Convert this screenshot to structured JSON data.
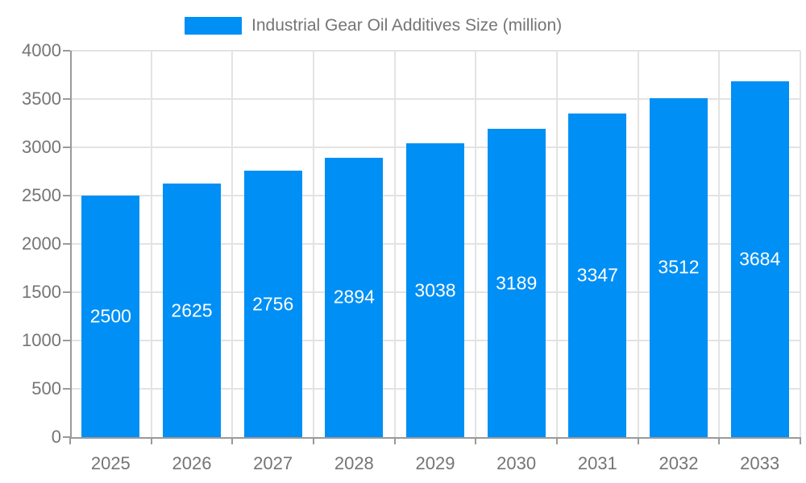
{
  "legend": {
    "label": "Industrial Gear Oil Additives Size (million)"
  },
  "colors": {
    "bar": "#008FF5",
    "axis_text": "#757575",
    "bar_label_text": "#ffffff",
    "grid_line": "#e3e3e3",
    "axis_line": "#9a9a9a",
    "background": "#ffffff"
  },
  "chart_data": {
    "type": "bar",
    "categories": [
      "2025",
      "2026",
      "2027",
      "2028",
      "2029",
      "2030",
      "2031",
      "2032",
      "2033"
    ],
    "values": [
      2500,
      2625,
      2756,
      2894,
      3038,
      3189,
      3347,
      3512,
      3684
    ],
    "title": "Industrial Gear Oil Additives Size (million)",
    "xlabel": "",
    "ylabel": "",
    "ylim": [
      0,
      4000
    ],
    "ytick_step": 500,
    "yticks": [
      0,
      500,
      1000,
      1500,
      2000,
      2500,
      3000,
      3500,
      4000
    ],
    "grid": true,
    "legend_position": "top",
    "data_labels": "inside-center"
  }
}
